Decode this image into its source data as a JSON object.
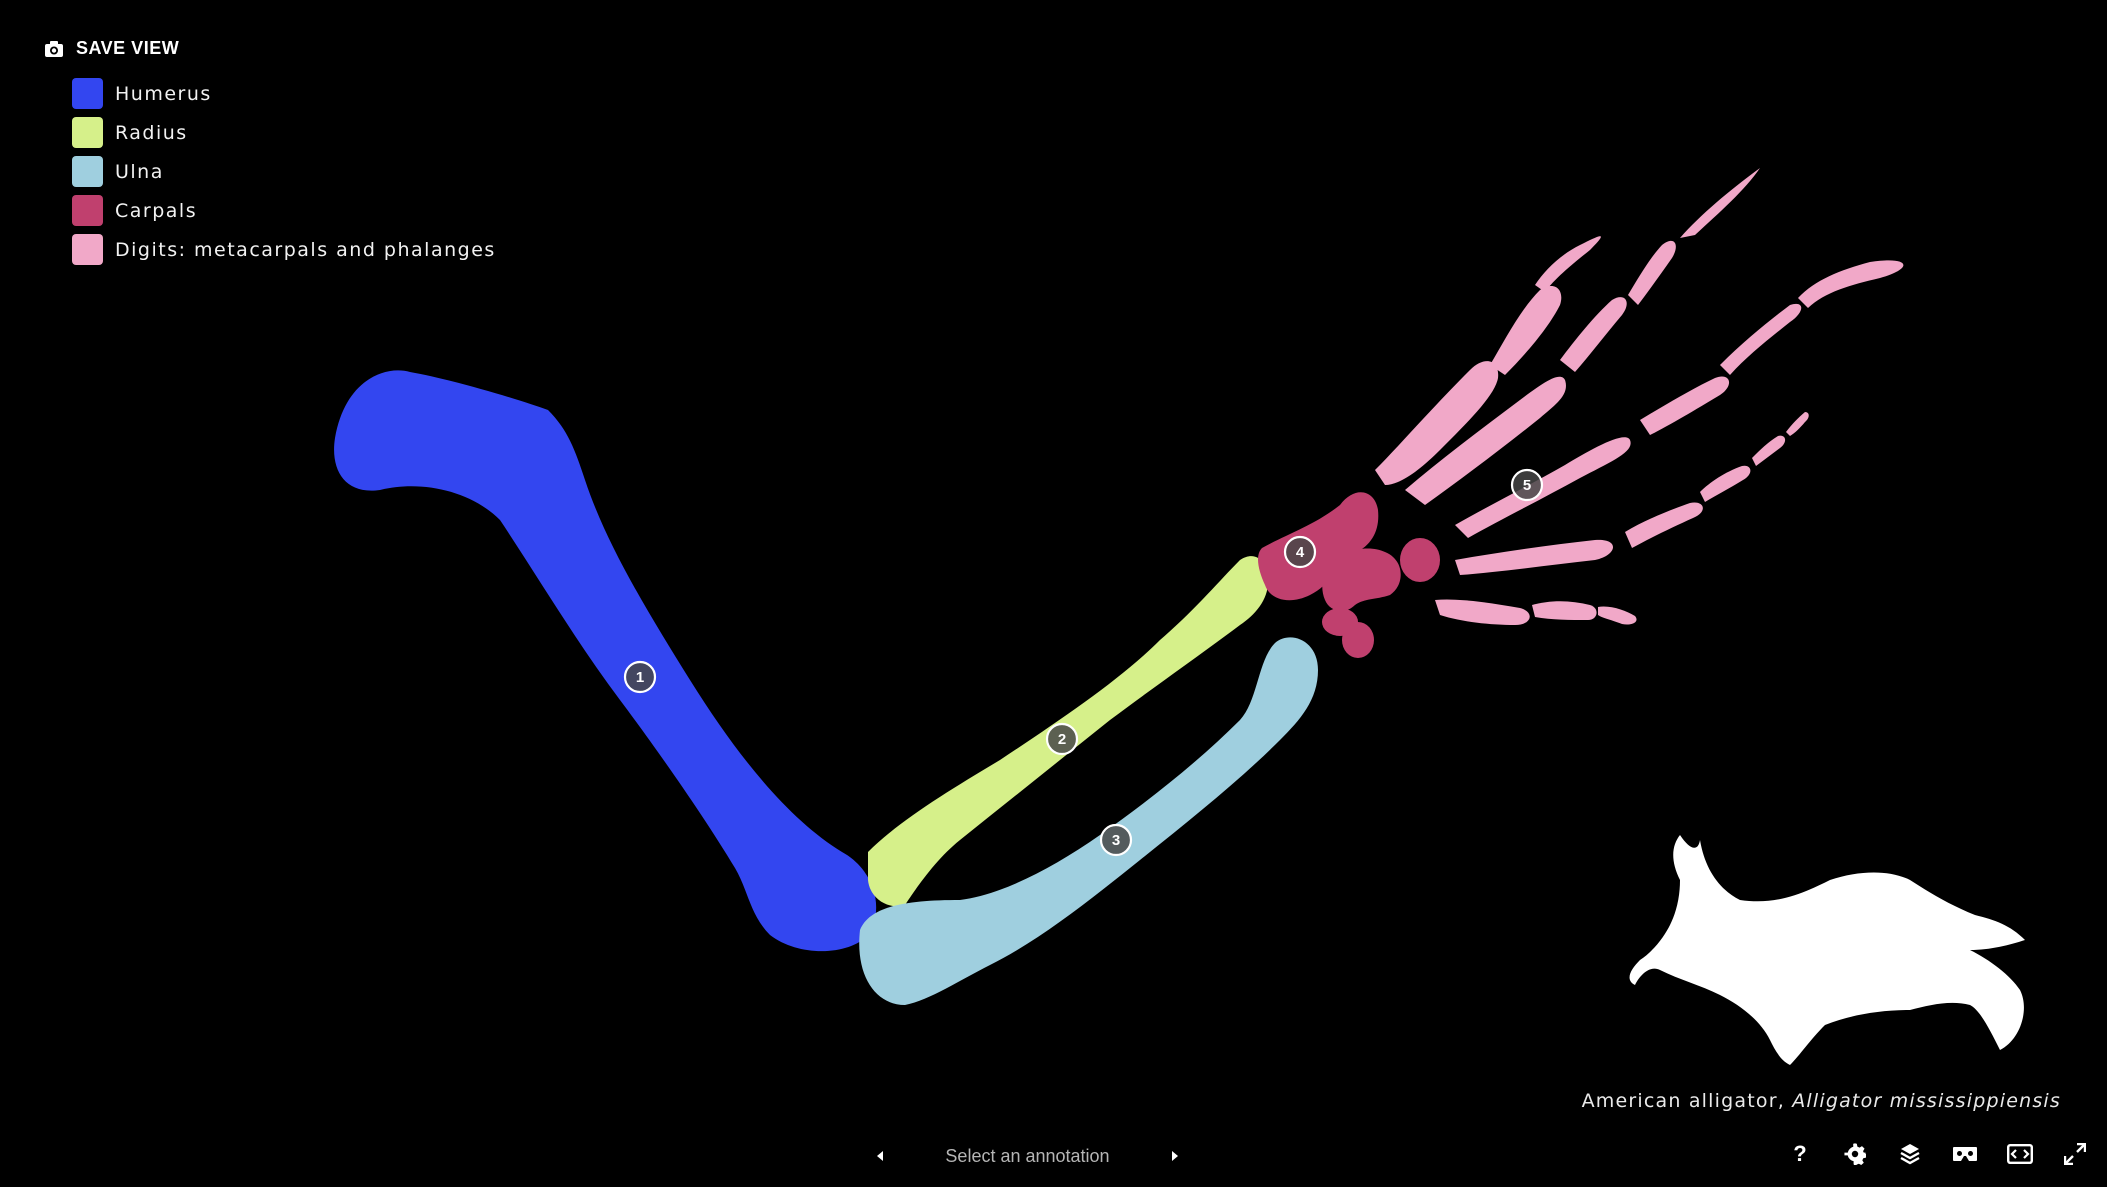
{
  "toolbar_top": {
    "save_view_label": "SAVE VIEW",
    "save_view_icon": "camera-icon"
  },
  "legend": [
    {
      "label": "Humerus",
      "color": "#3346f0"
    },
    {
      "label": "Radius",
      "color": "#d6f08a"
    },
    {
      "label": "Ulna",
      "color": "#9fcfdf"
    },
    {
      "label": "Carpals",
      "color": "#c0406e"
    },
    {
      "label": "Digits: metacarpals and phalanges",
      "color": "#f1a8c8"
    }
  ],
  "annotations": [
    "1",
    "2",
    "3",
    "4",
    "5"
  ],
  "caption": {
    "common_name": "American alligator, ",
    "species": "Alligator mississippiensis"
  },
  "annotation_nav": {
    "label": "Select an annotation",
    "prev_icon": "caret-left-icon",
    "next_icon": "caret-right-icon"
  },
  "tools": [
    {
      "icon": "help-icon",
      "glyph": "?"
    },
    {
      "icon": "gear-icon"
    },
    {
      "icon": "layers-icon"
    },
    {
      "icon": "vr-headset-icon"
    },
    {
      "icon": "embed-icon"
    },
    {
      "icon": "fullscreen-icon"
    }
  ]
}
